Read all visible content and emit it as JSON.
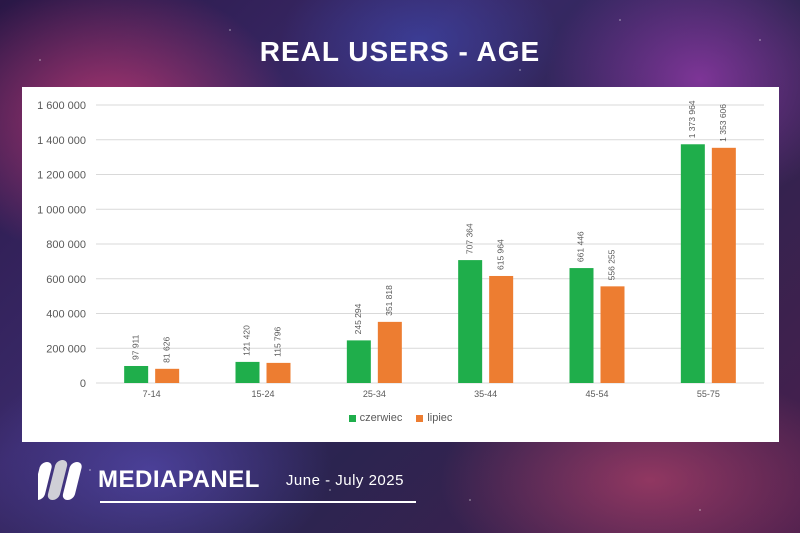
{
  "header": {
    "title": "REAL USERS - AGE"
  },
  "brand": {
    "name": "MEDIAPANEL",
    "date": "June - July  2025"
  },
  "colors": {
    "series1": "#1fae4b",
    "series2": "#ed7d31"
  },
  "chart_data": {
    "type": "bar",
    "title": "REAL USERS - AGE",
    "categories": [
      "7-14",
      "15-24",
      "25-34",
      "35-44",
      "45-54",
      "55-75"
    ],
    "series": [
      {
        "name": "czerwiec",
        "values": [
          97911,
          121420,
          245294,
          707364,
          661446,
          1373964
        ],
        "labels": [
          "97 911",
          "121 420",
          "245 294",
          "707 364",
          "661 446",
          "1 373 964"
        ]
      },
      {
        "name": "lipiec",
        "values": [
          81626,
          115796,
          351818,
          615964,
          556255,
          1353606
        ],
        "labels": [
          "81 626",
          "115 796",
          "351 818",
          "615 964",
          "556 255",
          "1 353 606"
        ]
      }
    ],
    "yticks": [
      0,
      200000,
      400000,
      600000,
      800000,
      1000000,
      1200000,
      1400000,
      1600000
    ],
    "ytick_labels": [
      "0",
      "200 000",
      "400 000",
      "600 000",
      "800 000",
      "1 000 000",
      "1 200 000",
      "1 400 000",
      "1 600 000"
    ],
    "ylim": [
      0,
      1600000
    ],
    "xlabel": "",
    "ylabel": "",
    "grid": true,
    "legend": "bottom-center"
  }
}
